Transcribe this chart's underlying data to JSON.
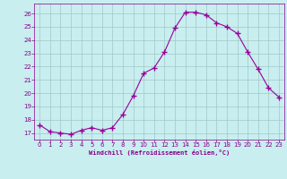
{
  "x": [
    0,
    1,
    2,
    3,
    4,
    5,
    6,
    7,
    8,
    9,
    10,
    11,
    12,
    13,
    14,
    15,
    16,
    17,
    18,
    19,
    20,
    21,
    22,
    23
  ],
  "y": [
    17.6,
    17.1,
    17.0,
    16.9,
    17.2,
    17.4,
    17.2,
    17.4,
    18.4,
    19.8,
    21.5,
    21.9,
    23.1,
    24.9,
    26.1,
    26.1,
    25.9,
    25.3,
    25.0,
    24.5,
    23.1,
    21.8,
    20.4,
    19.7
  ],
  "line_color": "#990099",
  "marker": "+",
  "marker_size": 4,
  "bg_color": "#c8eef0",
  "grid_color": "#a0c8c8",
  "xlabel": "Windchill (Refroidissement éolien,°C)",
  "xlabel_color": "#880088",
  "tick_color": "#880088",
  "ylim": [
    16.5,
    26.75
  ],
  "xlim": [
    -0.5,
    23.5
  ],
  "yticks": [
    17,
    18,
    19,
    20,
    21,
    22,
    23,
    24,
    25,
    26
  ],
  "xticks": [
    0,
    1,
    2,
    3,
    4,
    5,
    6,
    7,
    8,
    9,
    10,
    11,
    12,
    13,
    14,
    15,
    16,
    17,
    18,
    19,
    20,
    21,
    22,
    23
  ],
  "figsize": [
    3.2,
    2.0
  ],
  "dpi": 100
}
